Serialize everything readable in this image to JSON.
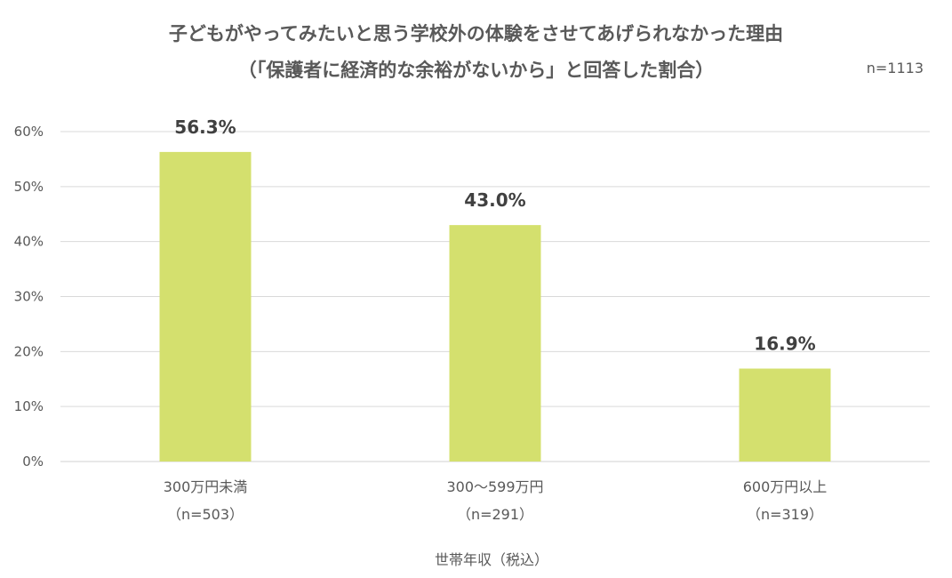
{
  "chart_data": {
    "type": "bar",
    "title_line1": "子どもがやってみたいと思う学校外の体験をさせてあげられなかった理由",
    "title_line2": "（「保護者に経済的な余裕がないから」と回答した割合）",
    "sample_size": "n=1113",
    "categories": [
      "300万円未満",
      "300〜599万円",
      "600万円以上"
    ],
    "category_n": [
      "（n=503）",
      "（n=291）",
      "（n=319）"
    ],
    "values": [
      56.3,
      43.0,
      16.9
    ],
    "data_labels": [
      "56.3%",
      "43.0%",
      "16.9%"
    ],
    "xlabel": "世帯年収（税込）",
    "ylabel": "",
    "ylim": [
      0,
      60
    ],
    "yticks": [
      0,
      10,
      20,
      30,
      40,
      50,
      60
    ],
    "ytick_labels": [
      "0%",
      "10%",
      "20%",
      "30%",
      "40%",
      "50%",
      "60%"
    ],
    "grid": true,
    "bar_color": "#d4e06e",
    "grid_color": "#d9d9d9"
  }
}
